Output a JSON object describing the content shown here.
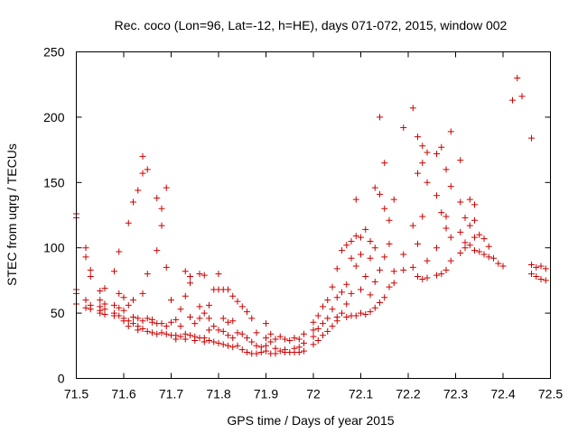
{
  "chart_data": {
    "type": "scatter",
    "title": "Rec. coco (Lon=96, Lat=-12, h=HE), days 071-072, 2015, window 002",
    "xlabel": "GPS time / Days of year 2015",
    "ylabel": "STEC from uqrg / TECUs",
    "xlim": [
      71.5,
      72.5
    ],
    "ylim": [
      0,
      250
    ],
    "x_ticks": [
      "71.5",
      "71.6",
      "71.7",
      "71.8",
      "71.9",
      "72",
      "72.1",
      "72.2",
      "72.3",
      "72.4",
      "72.5"
    ],
    "y_ticks": [
      "0",
      "50",
      "100",
      "150",
      "200",
      "250"
    ],
    "grid": false,
    "legend": "none",
    "marker": "+",
    "color": "#cc0000",
    "points": [
      [
        71.5,
        126
      ],
      [
        71.5,
        123
      ],
      [
        71.5,
        68
      ],
      [
        71.5,
        65
      ],
      [
        71.5,
        57
      ],
      [
        71.52,
        100
      ],
      [
        71.52,
        93
      ],
      [
        71.52,
        60
      ],
      [
        71.52,
        54
      ],
      [
        71.53,
        83
      ],
      [
        71.53,
        78
      ],
      [
        71.53,
        56
      ],
      [
        71.53,
        53
      ],
      [
        71.55,
        67
      ],
      [
        71.55,
        60
      ],
      [
        71.55,
        55
      ],
      [
        71.55,
        52
      ],
      [
        71.55,
        50
      ],
      [
        71.56,
        69
      ],
      [
        71.56,
        57
      ],
      [
        71.56,
        53
      ],
      [
        71.56,
        49
      ],
      [
        71.58,
        82
      ],
      [
        71.58,
        56
      ],
      [
        71.58,
        50
      ],
      [
        71.58,
        48
      ],
      [
        71.59,
        97
      ],
      [
        71.59,
        65
      ],
      [
        71.59,
        54
      ],
      [
        71.59,
        48
      ],
      [
        71.6,
        62
      ],
      [
        71.6,
        52
      ],
      [
        71.6,
        46
      ],
      [
        71.6,
        44
      ],
      [
        71.61,
        119
      ],
      [
        71.61,
        56
      ],
      [
        71.61,
        44
      ],
      [
        71.61,
        40
      ],
      [
        71.62,
        135
      ],
      [
        71.62,
        60
      ],
      [
        71.62,
        47
      ],
      [
        71.62,
        42
      ],
      [
        71.63,
        144
      ],
      [
        71.63,
        46
      ],
      [
        71.63,
        40
      ],
      [
        71.63,
        37
      ],
      [
        71.64,
        170
      ],
      [
        71.64,
        157
      ],
      [
        71.64,
        65
      ],
      [
        71.64,
        44
      ],
      [
        71.64,
        38
      ],
      [
        71.65,
        160
      ],
      [
        71.65,
        80
      ],
      [
        71.65,
        46
      ],
      [
        71.65,
        36
      ],
      [
        71.66,
        45
      ],
      [
        71.66,
        43
      ],
      [
        71.66,
        35
      ],
      [
        71.67,
        138
      ],
      [
        71.67,
        98
      ],
      [
        71.67,
        42
      ],
      [
        71.67,
        34
      ],
      [
        71.68,
        130
      ],
      [
        71.68,
        117
      ],
      [
        71.68,
        42
      ],
      [
        71.68,
        35
      ],
      [
        71.69,
        146
      ],
      [
        71.69,
        85
      ],
      [
        71.69,
        40
      ],
      [
        71.69,
        34
      ],
      [
        71.7,
        60
      ],
      [
        71.7,
        43
      ],
      [
        71.7,
        33
      ],
      [
        71.71,
        45
      ],
      [
        71.71,
        33
      ],
      [
        71.71,
        30
      ],
      [
        71.72,
        53
      ],
      [
        71.72,
        40
      ],
      [
        71.72,
        32
      ],
      [
        71.73,
        82
      ],
      [
        71.73,
        63
      ],
      [
        71.73,
        34
      ],
      [
        71.73,
        30
      ],
      [
        71.74,
        78
      ],
      [
        71.74,
        73
      ],
      [
        71.74,
        47
      ],
      [
        71.74,
        33
      ],
      [
        71.75,
        42
      ],
      [
        71.75,
        32
      ],
      [
        71.75,
        29
      ],
      [
        71.76,
        80
      ],
      [
        71.76,
        55
      ],
      [
        71.76,
        46
      ],
      [
        71.76,
        31
      ],
      [
        71.77,
        79
      ],
      [
        71.77,
        50
      ],
      [
        71.77,
        31
      ],
      [
        71.77,
        28
      ],
      [
        71.78,
        56
      ],
      [
        71.78,
        46
      ],
      [
        71.78,
        37
      ],
      [
        71.78,
        29
      ],
      [
        71.79,
        68
      ],
      [
        71.79,
        40
      ],
      [
        71.79,
        28
      ],
      [
        71.8,
        80
      ],
      [
        71.8,
        68
      ],
      [
        71.8,
        37
      ],
      [
        71.8,
        27
      ],
      [
        71.81,
        68
      ],
      [
        71.81,
        46
      ],
      [
        71.81,
        36
      ],
      [
        71.81,
        26
      ],
      [
        71.82,
        68
      ],
      [
        71.82,
        43
      ],
      [
        71.82,
        33
      ],
      [
        71.82,
        25
      ],
      [
        71.83,
        63
      ],
      [
        71.83,
        44
      ],
      [
        71.83,
        31
      ],
      [
        71.83,
        24
      ],
      [
        71.84,
        59
      ],
      [
        71.84,
        35
      ],
      [
        71.84,
        25
      ],
      [
        71.85,
        55
      ],
      [
        71.85,
        34
      ],
      [
        71.85,
        22
      ],
      [
        71.86,
        51
      ],
      [
        71.86,
        31
      ],
      [
        71.86,
        20
      ],
      [
        71.87,
        46
      ],
      [
        71.87,
        28
      ],
      [
        71.87,
        19
      ],
      [
        71.88,
        35
      ],
      [
        71.88,
        25
      ],
      [
        71.88,
        19
      ],
      [
        71.89,
        24
      ],
      [
        71.89,
        20
      ],
      [
        71.9,
        42
      ],
      [
        71.9,
        31
      ],
      [
        71.9,
        25
      ],
      [
        71.9,
        21
      ],
      [
        71.91,
        34
      ],
      [
        71.91,
        28
      ],
      [
        71.91,
        19
      ],
      [
        71.92,
        30
      ],
      [
        71.92,
        23
      ],
      [
        71.92,
        19
      ],
      [
        71.93,
        32
      ],
      [
        71.93,
        21
      ],
      [
        71.94,
        30
      ],
      [
        71.94,
        22
      ],
      [
        71.94,
        20
      ],
      [
        71.95,
        29
      ],
      [
        71.95,
        20
      ],
      [
        71.96,
        31
      ],
      [
        71.96,
        23
      ],
      [
        71.96,
        20
      ],
      [
        71.97,
        30
      ],
      [
        71.97,
        24
      ],
      [
        71.97,
        20
      ],
      [
        71.98,
        34
      ],
      [
        71.98,
        27
      ],
      [
        71.98,
        21
      ],
      [
        72.0,
        43
      ],
      [
        72.0,
        37
      ],
      [
        72.0,
        32
      ],
      [
        72.0,
        26
      ],
      [
        72.01,
        48
      ],
      [
        72.01,
        38
      ],
      [
        72.01,
        29
      ],
      [
        72.02,
        55
      ],
      [
        72.02,
        42
      ],
      [
        72.02,
        33
      ],
      [
        72.03,
        60
      ],
      [
        72.03,
        46
      ],
      [
        72.03,
        36
      ],
      [
        72.04,
        70
      ],
      [
        72.04,
        53
      ],
      [
        72.04,
        40
      ],
      [
        72.05,
        84
      ],
      [
        72.05,
        62
      ],
      [
        72.05,
        47
      ],
      [
        72.05,
        44
      ],
      [
        72.06,
        98
      ],
      [
        72.06,
        66
      ],
      [
        72.06,
        50
      ],
      [
        72.07,
        102
      ],
      [
        72.07,
        72
      ],
      [
        72.07,
        57
      ],
      [
        72.07,
        47
      ],
      [
        72.08,
        105
      ],
      [
        72.08,
        92
      ],
      [
        72.08,
        65
      ],
      [
        72.08,
        48
      ],
      [
        72.09,
        137
      ],
      [
        72.09,
        109
      ],
      [
        72.09,
        86
      ],
      [
        72.09,
        48
      ],
      [
        72.1,
        108
      ],
      [
        72.1,
        95
      ],
      [
        72.1,
        68
      ],
      [
        72.1,
        50
      ],
      [
        72.11,
        114
      ],
      [
        72.11,
        78
      ],
      [
        72.11,
        49
      ],
      [
        72.12,
        105
      ],
      [
        72.12,
        92
      ],
      [
        72.12,
        64
      ],
      [
        72.12,
        51
      ],
      [
        72.13,
        146
      ],
      [
        72.13,
        100
      ],
      [
        72.13,
        74
      ],
      [
        72.13,
        54
      ],
      [
        72.14,
        200
      ],
      [
        72.14,
        141
      ],
      [
        72.14,
        83
      ],
      [
        72.14,
        58
      ],
      [
        72.15,
        165
      ],
      [
        72.15,
        130
      ],
      [
        72.15,
        93
      ],
      [
        72.15,
        62
      ],
      [
        72.16,
        121
      ],
      [
        72.16,
        103
      ],
      [
        72.16,
        70
      ],
      [
        72.17,
        137
      ],
      [
        72.17,
        82
      ],
      [
        72.17,
        73
      ],
      [
        72.19,
        192
      ],
      [
        72.19,
        95
      ],
      [
        72.19,
        83
      ],
      [
        72.21,
        207
      ],
      [
        72.21,
        117
      ],
      [
        72.21,
        85
      ],
      [
        72.22,
        185
      ],
      [
        72.22,
        157
      ],
      [
        72.22,
        103
      ],
      [
        72.22,
        78
      ],
      [
        72.23,
        178
      ],
      [
        72.23,
        165
      ],
      [
        72.23,
        124
      ],
      [
        72.23,
        76
      ],
      [
        72.24,
        173
      ],
      [
        72.24,
        150
      ],
      [
        72.24,
        90
      ],
      [
        72.24,
        77
      ],
      [
        72.26,
        172
      ],
      [
        72.26,
        140
      ],
      [
        72.26,
        100
      ],
      [
        72.26,
        79
      ],
      [
        72.27,
        177
      ],
      [
        72.27,
        127
      ],
      [
        72.27,
        80
      ],
      [
        72.28,
        160
      ],
      [
        72.28,
        124
      ],
      [
        72.28,
        115
      ],
      [
        72.28,
        83
      ],
      [
        72.29,
        189
      ],
      [
        72.29,
        147
      ],
      [
        72.29,
        108
      ],
      [
        72.29,
        90
      ],
      [
        72.31,
        167
      ],
      [
        72.31,
        135
      ],
      [
        72.31,
        112
      ],
      [
        72.31,
        96
      ],
      [
        72.32,
        123
      ],
      [
        72.32,
        104
      ],
      [
        72.32,
        100
      ],
      [
        72.33,
        137
      ],
      [
        72.33,
        117
      ],
      [
        72.33,
        102
      ],
      [
        72.34,
        133
      ],
      [
        72.34,
        121
      ],
      [
        72.34,
        108
      ],
      [
        72.34,
        98
      ],
      [
        72.35,
        110
      ],
      [
        72.35,
        97
      ],
      [
        72.36,
        107
      ],
      [
        72.36,
        95
      ],
      [
        72.37,
        101
      ],
      [
        72.37,
        93
      ],
      [
        72.38,
        92
      ],
      [
        72.39,
        88
      ],
      [
        72.4,
        86
      ],
      [
        72.42,
        213
      ],
      [
        72.43,
        230
      ],
      [
        72.44,
        216
      ],
      [
        72.46,
        184
      ],
      [
        72.46,
        87
      ],
      [
        72.46,
        80
      ],
      [
        72.47,
        85
      ],
      [
        72.47,
        78
      ],
      [
        72.48,
        86
      ],
      [
        72.48,
        76
      ],
      [
        72.49,
        84
      ],
      [
        72.49,
        75
      ]
    ]
  }
}
